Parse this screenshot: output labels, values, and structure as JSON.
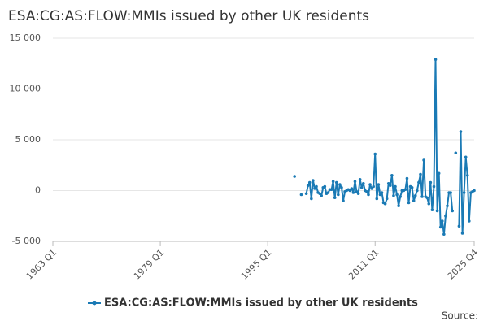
{
  "chart_data": {
    "type": "line",
    "title": "ESA:CG:AS:FLOW:MMIs issued by other UK residents",
    "x": [
      "1999 Q1",
      "1999 Q2",
      "1999 Q3",
      "1999 Q4",
      "2000 Q1",
      "2000 Q2",
      "2000 Q3",
      "2000 Q4",
      "2001 Q1",
      "2001 Q2",
      "2001 Q3",
      "2001 Q4",
      "2002 Q1",
      "2002 Q2",
      "2002 Q3",
      "2002 Q4",
      "2003 Q1",
      "2003 Q2",
      "2003 Q3",
      "2003 Q4",
      "2004 Q1",
      "2004 Q2",
      "2004 Q3",
      "2004 Q4",
      "2005 Q1",
      "2005 Q2",
      "2005 Q3",
      "2005 Q4",
      "2006 Q1",
      "2006 Q2",
      "2006 Q3",
      "2006 Q4",
      "2007 Q1",
      "2007 Q2",
      "2007 Q3",
      "2007 Q4",
      "2008 Q1",
      "2008 Q2",
      "2008 Q3",
      "2008 Q4",
      "2009 Q1",
      "2009 Q2",
      "2009 Q3",
      "2009 Q4",
      "2010 Q1",
      "2010 Q2",
      "2010 Q3",
      "2010 Q4",
      "2011 Q1",
      "2011 Q2",
      "2011 Q3",
      "2011 Q4",
      "2012 Q1",
      "2012 Q2",
      "2012 Q3",
      "2012 Q4",
      "2013 Q1",
      "2013 Q2",
      "2013 Q3",
      "2013 Q4",
      "2014 Q1",
      "2014 Q2",
      "2014 Q3",
      "2014 Q4",
      "2015 Q1",
      "2015 Q2",
      "2015 Q3",
      "2015 Q4",
      "2016 Q1",
      "2016 Q2",
      "2016 Q3",
      "2016 Q4",
      "2017 Q1",
      "2017 Q2",
      "2017 Q3",
      "2017 Q4",
      "2018 Q1",
      "2018 Q2",
      "2018 Q3",
      "2018 Q4",
      "2019 Q1",
      "2019 Q2",
      "2019 Q3",
      "2019 Q4",
      "2020 Q1",
      "2020 Q2",
      "2020 Q3",
      "2020 Q4",
      "2021 Q1",
      "2021 Q2",
      "2021 Q3",
      "2021 Q4",
      "2022 Q1",
      "2022 Q2",
      "2022 Q3",
      "2022 Q4",
      "2023 Q1",
      "2023 Q2",
      "2023 Q3",
      "2023 Q4",
      "2024 Q1",
      "2024 Q2",
      "2024 Q3",
      "2024 Q4",
      "2025 Q1",
      "2025 Q2",
      "2025 Q3",
      "2025 Q4"
    ],
    "series": [
      {
        "name": "ESA:CG:AS:FLOW:MMIs issued by other UK residents",
        "color": "#1a7ab5",
        "values": [
          1400,
          null,
          null,
          null,
          -400,
          null,
          null,
          -300,
          500,
          800,
          -800,
          1000,
          200,
          400,
          -200,
          -300,
          -500,
          300,
          400,
          -300,
          -200,
          100,
          100,
          900,
          -700,
          800,
          -400,
          600,
          300,
          -1000,
          -100,
          0,
          100,
          0,
          200,
          -200,
          900,
          -100,
          -300,
          1100,
          300,
          700,
          0,
          -100,
          -400,
          600,
          200,
          400,
          3600,
          -800,
          600,
          -400,
          -200,
          -1200,
          -1300,
          -800,
          700,
          500,
          1500,
          -500,
          400,
          -400,
          -1500,
          -600,
          0,
          0,
          100,
          1200,
          -1200,
          400,
          300,
          -1000,
          -500,
          0,
          800,
          1600,
          -600,
          3000,
          -600,
          -700,
          -1300,
          800,
          -1900,
          400,
          12900,
          -2000,
          1700,
          -3600,
          -3000,
          -4300,
          -2500,
          -1500,
          -200,
          -200,
          -2000,
          null,
          3700,
          null,
          -3500,
          5800,
          -4200,
          -200,
          3300,
          1500,
          -3000,
          -200,
          -100,
          0
        ]
      }
    ],
    "xlim": [
      "1963 Q1",
      "2025 Q4"
    ],
    "xticks": [
      "1963 Q1",
      "1979 Q1",
      "1995 Q1",
      "2011 Q1",
      "2025 Q4"
    ],
    "ylim": [
      -5000,
      15000
    ],
    "yticks": [
      {
        "value": -5000,
        "label": "-5 000"
      },
      0,
      {
        "value": 5000,
        "label": "5 000"
      },
      {
        "value": 10000,
        "label": "10 000"
      },
      {
        "value": 15000,
        "label": "15 000"
      }
    ],
    "grid": true,
    "source": "Source:"
  }
}
